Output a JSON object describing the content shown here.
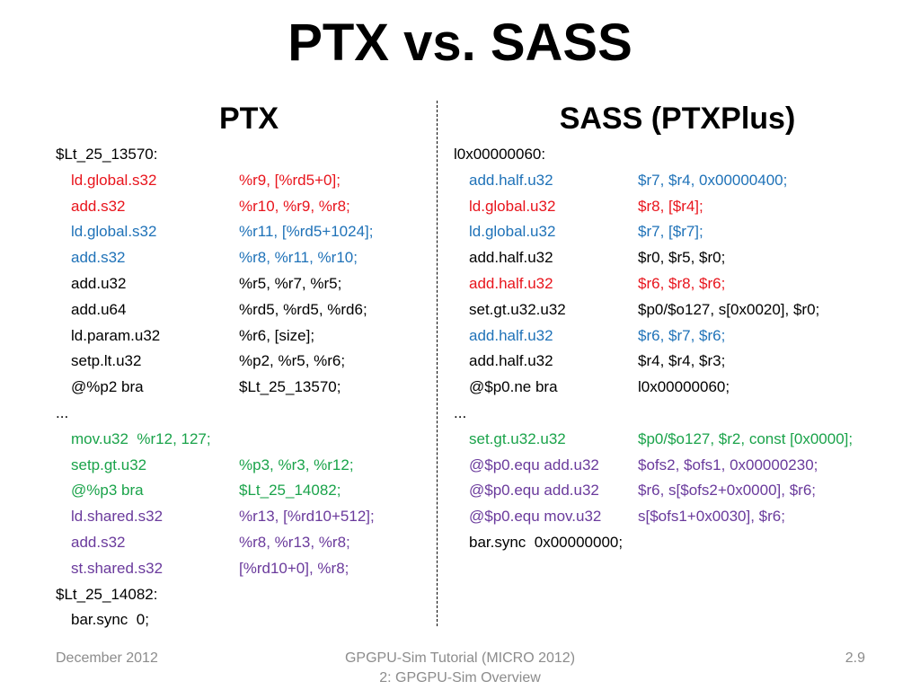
{
  "slide": {
    "title": "PTX vs. SASS"
  },
  "ptx": {
    "heading": "PTX",
    "lines": [
      {
        "kind": "label",
        "text": "$Lt_25_13570:",
        "color": "black"
      },
      {
        "kind": "instr",
        "op": "ld.global.s32",
        "args": "%r9, [%rd5+0];",
        "color": "red"
      },
      {
        "kind": "instr",
        "op": "add.s32",
        "args": "%r10, %r9, %r8;",
        "color": "red"
      },
      {
        "kind": "instr",
        "op": "ld.global.s32",
        "args": "%r11, [%rd5+1024];",
        "color": "blue"
      },
      {
        "kind": "instr",
        "op": "add.s32",
        "args": "%r8, %r11, %r10;",
        "color": "blue"
      },
      {
        "kind": "instr",
        "op": "add.u32",
        "args": "%r5, %r7, %r5;",
        "color": "black"
      },
      {
        "kind": "instr",
        "op": "add.u64",
        "args": "%rd5, %rd5, %rd6;",
        "color": "black"
      },
      {
        "kind": "instr",
        "op": "ld.param.u32",
        "args": "%r6, [size];",
        "color": "black"
      },
      {
        "kind": "instr",
        "op": "setp.lt.u32",
        "args": "%p2, %r5, %r6;",
        "color": "black"
      },
      {
        "kind": "instr",
        "op": "@%p2 bra",
        "args": "$Lt_25_13570;",
        "color": "black"
      },
      {
        "kind": "label",
        "text": "...",
        "color": "black"
      },
      {
        "kind": "instr",
        "op": "mov.u32  %r12, 127;",
        "args": "",
        "color": "green"
      },
      {
        "kind": "instr",
        "op": "setp.gt.u32",
        "args": "%p3, %r3, %r12;",
        "color": "green"
      },
      {
        "kind": "instr",
        "op": "@%p3 bra",
        "args": "$Lt_25_14082;",
        "color": "green"
      },
      {
        "kind": "instr",
        "op": "ld.shared.s32",
        "args": "%r13, [%rd10+512];",
        "color": "purple"
      },
      {
        "kind": "instr",
        "op": "add.s32",
        "args": "%r8, %r13, %r8;",
        "color": "purple"
      },
      {
        "kind": "instr",
        "op": "st.shared.s32",
        "args": "[%rd10+0], %r8;",
        "color": "purple"
      },
      {
        "kind": "label",
        "text": "$Lt_25_14082:",
        "color": "black"
      },
      {
        "kind": "instr",
        "op": "bar.sync  0;",
        "args": "",
        "color": "black"
      }
    ]
  },
  "sass": {
    "heading": "SASS (PTXPlus)",
    "lines": [
      {
        "kind": "label",
        "text": "l0x00000060:",
        "color": "black"
      },
      {
        "kind": "instr",
        "op": "add.half.u32",
        "args": "$r7, $r4, 0x00000400;",
        "color": "blue"
      },
      {
        "kind": "instr",
        "op": "ld.global.u32",
        "args": "$r8, [$r4];",
        "color": "red"
      },
      {
        "kind": "instr",
        "op": "ld.global.u32",
        "args": "$r7, [$r7];",
        "color": "blue"
      },
      {
        "kind": "instr",
        "op": "add.half.u32",
        "args": "$r0, $r5, $r0;",
        "color": "black"
      },
      {
        "kind": "instr",
        "op": "add.half.u32",
        "args": "$r6, $r8, $r6;",
        "color": "red"
      },
      {
        "kind": "instr",
        "op": "set.gt.u32.u32",
        "args": "$p0/$o127, s[0x0020], $r0;",
        "color": "black"
      },
      {
        "kind": "instr",
        "op": "add.half.u32",
        "args": "$r6, $r7, $r6;",
        "color": "blue"
      },
      {
        "kind": "instr",
        "op": "add.half.u32",
        "args": "$r4, $r4, $r3;",
        "color": "black"
      },
      {
        "kind": "instr",
        "op": "@$p0.ne bra",
        "args": "l0x00000060;",
        "color": "black"
      },
      {
        "kind": "label",
        "text": "...",
        "color": "black"
      },
      {
        "kind": "instr",
        "op": "set.gt.u32.u32",
        "args": "$p0/$o127, $r2, const [0x0000];",
        "color": "green"
      },
      {
        "kind": "instr",
        "op": "@$p0.equ add.u32",
        "args": "$ofs2, $ofs1, 0x00000230;",
        "color": "purple"
      },
      {
        "kind": "instr",
        "op": "@$p0.equ add.u32",
        "args": "$r6, s[$ofs2+0x0000], $r6;",
        "color": "purple"
      },
      {
        "kind": "instr",
        "op": "@$p0.equ mov.u32",
        "args": "s[$ofs1+0x0030], $r6;",
        "color": "purple"
      },
      {
        "kind": "instr",
        "op": "bar.sync  0x00000000;",
        "args": "",
        "color": "black"
      }
    ]
  },
  "footer": {
    "date": "December 2012",
    "center_line1": "GPGPU-Sim Tutorial (MICRO 2012)",
    "center_line2": "2: GPGPU-Sim Overview",
    "page": "2.9"
  }
}
